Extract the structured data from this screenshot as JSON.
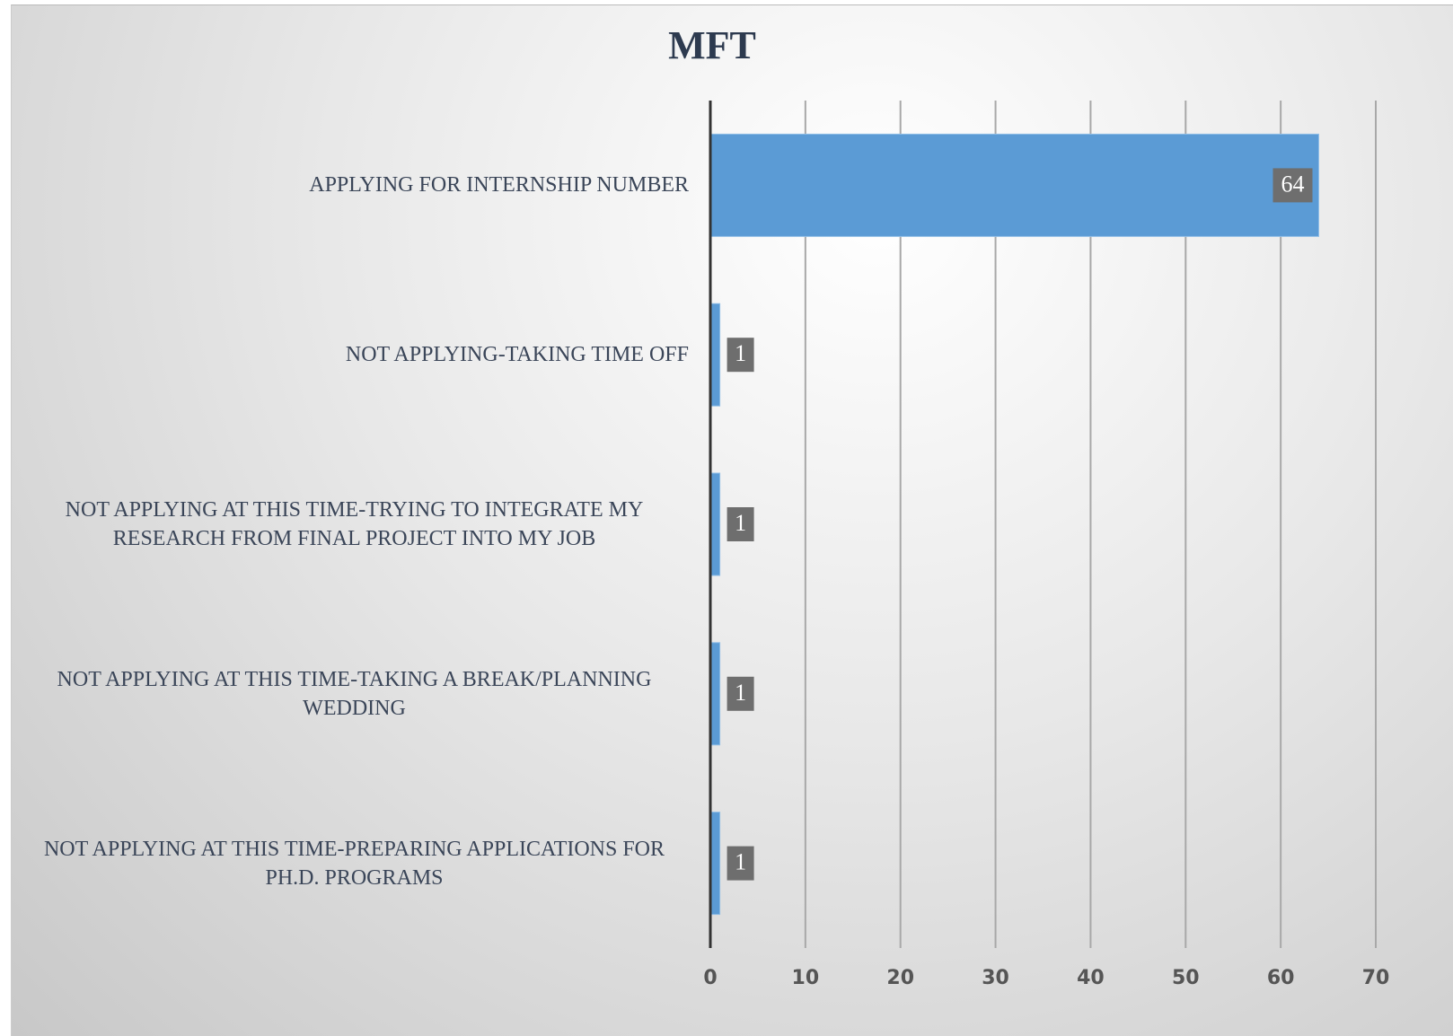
{
  "chart_data": {
    "type": "bar",
    "orientation": "horizontal",
    "title": "MFT",
    "categories": [
      "APPLYING FOR INTERNSHIP NUMBER",
      "NOT APPLYING-TAKING TIME OFF",
      "NOT APPLYING AT THIS TIME-TRYING TO INTEGRATE MY RESEARCH FROM FINAL PROJECT INTO MY JOB",
      "NOT APPLYING AT THIS TIME-TAKING A BREAK/PLANNING WEDDING",
      "NOT APPLYING AT THIS TIME-PREPARING APPLICATIONS FOR PH.D. PROGRAMS"
    ],
    "values": [
      64,
      1,
      1,
      1,
      1
    ],
    "color": "#5b9bd5",
    "xlim": [
      0,
      70
    ],
    "xticks": [
      0,
      10,
      20,
      30,
      40,
      50,
      60,
      70
    ],
    "grid": true
  }
}
